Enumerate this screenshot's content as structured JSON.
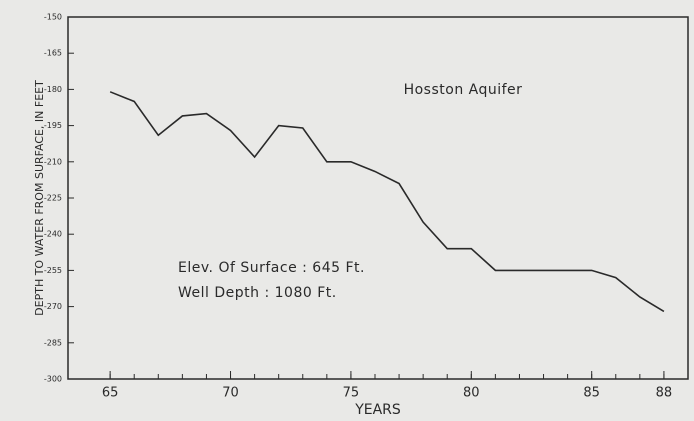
{
  "chart_data": {
    "type": "line",
    "annotations": [
      "Hosston Aquifer",
      "Elev. Of Surface : 645 Ft.",
      "Well Depth : 1080 Ft."
    ],
    "xlabel": "YEARS",
    "ylabel": "DEPTH TO WATER FROM SURFACE, IN FEET",
    "x": [
      65,
      66,
      67,
      68,
      69,
      70,
      71,
      72,
      73,
      74,
      75,
      76,
      77,
      78,
      79,
      80,
      81,
      82,
      83,
      84,
      85,
      86,
      87,
      88
    ],
    "values": [
      -181,
      -185,
      -199,
      -191,
      -190,
      -197,
      -208,
      -195,
      -196,
      -210,
      -210,
      -214,
      -219,
      -235,
      -246,
      -246,
      -255,
      -255,
      -255,
      -255,
      -255,
      -258,
      -266,
      -272
    ],
    "color": "#2a2a2a",
    "xlim": [
      63.25,
      89
    ],
    "xticks": [
      65,
      70,
      75,
      80,
      85,
      88
    ],
    "ylim": [
      -300,
      -150
    ],
    "yticks": [
      -150,
      -165,
      -180,
      -195,
      -210,
      -225,
      -240,
      -255,
      -270,
      -285,
      -300
    ],
    "grid": false
  }
}
